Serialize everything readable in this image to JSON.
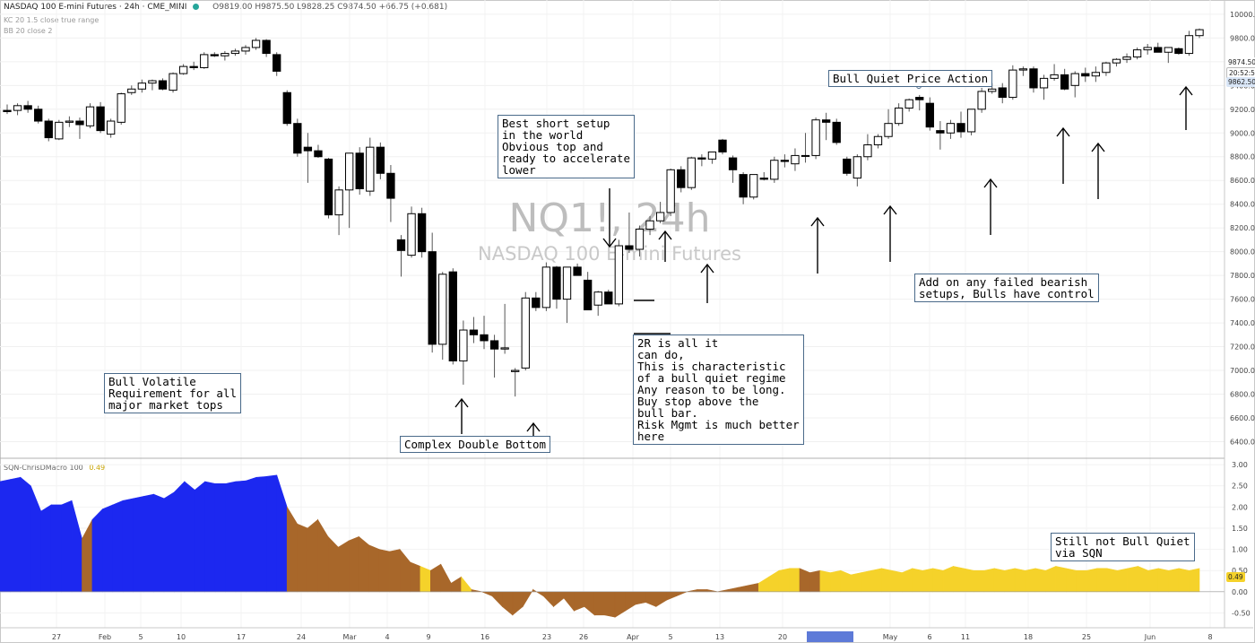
{
  "header": {
    "title": "NASDAQ 100 E-mini Futures",
    "interval": "24h",
    "exchange": "CME_MINI",
    "ohlc": "O9819.00  H9875.50  L9828.25  C9874.50  +66.75 (+0.681)",
    "indicator1": "KC 20 1.5 close true range",
    "indicator2": "BB 20 close 2"
  },
  "watermark": {
    "symbol": "NQ1!, 24h",
    "name": "NASDAQ 100 E-mini Futures"
  },
  "sqn": {
    "label": "SQN-ChrisDMacro 100",
    "value_label": "0.49",
    "badge": "0.49"
  },
  "price_badges": {
    "last": "9874.50",
    "countdown": "20:52:56",
    "other": "9862.50"
  },
  "date_badge": "",
  "annotations": [
    {
      "id": "best-short",
      "text": "Best short setup\nin the world\nObvious top and\nready to accelerate\nlower"
    },
    {
      "id": "bull-quiet",
      "text": "Bull Quiet Price Action"
    },
    {
      "id": "bull-volatile",
      "text": "Bull Volatile\nRequirement for all\nmajor market tops"
    },
    {
      "id": "double-bottom",
      "text": "Complex Double Bottom"
    },
    {
      "id": "two-r",
      "text": "2R is all it\ncan do,\nThis is characteristic\nof a bull quiet regime\nAny reason to be long.\nBuy stop above the\nbull bar.\nRisk Mgmt is much better\nhere"
    },
    {
      "id": "add-on",
      "text": "Add on any failed bearish\nsetups, Bulls have control"
    },
    {
      "id": "still-not",
      "text": "Still not Bull Quiet\nvia SQN"
    }
  ],
  "chart_data": [
    {
      "type": "candlestick",
      "title": "",
      "y_ticks": [
        6400,
        6600,
        6800,
        7000,
        7200,
        7400,
        7600,
        7800,
        8000,
        8200,
        8400,
        8600,
        8800,
        9000,
        9200,
        9400,
        9600,
        9800,
        10000
      ],
      "ylim": [
        6260,
        10120
      ],
      "x_ticks": [
        "27",
        "Feb",
        "5",
        "10",
        "17",
        "24",
        "Mar",
        "4",
        "9",
        "16",
        "23",
        "26",
        "Apr",
        "5",
        "13",
        "20",
        "May",
        "6",
        "11",
        "18",
        "25",
        "Jun",
        "8"
      ],
      "candles": [
        {
          "o": 9190,
          "h": 9240,
          "l": 9160,
          "c": 9180
        },
        {
          "o": 9190,
          "h": 9250,
          "l": 9150,
          "c": 9230
        },
        {
          "o": 9230,
          "h": 9270,
          "l": 9170,
          "c": 9200
        },
        {
          "o": 9200,
          "h": 9230,
          "l": 9080,
          "c": 9100
        },
        {
          "o": 9100,
          "h": 9120,
          "l": 8930,
          "c": 8960
        },
        {
          "o": 8950,
          "h": 9110,
          "l": 8940,
          "c": 9090
        },
        {
          "o": 9090,
          "h": 9140,
          "l": 9050,
          "c": 9100
        },
        {
          "o": 9100,
          "h": 9130,
          "l": 8950,
          "c": 9070
        },
        {
          "o": 9060,
          "h": 9250,
          "l": 9040,
          "c": 9220
        },
        {
          "o": 9220,
          "h": 9260,
          "l": 9000,
          "c": 9020
        },
        {
          "o": 8990,
          "h": 9120,
          "l": 8960,
          "c": 9100
        },
        {
          "o": 9090,
          "h": 9340,
          "l": 9070,
          "c": 9330
        },
        {
          "o": 9340,
          "h": 9400,
          "l": 9320,
          "c": 9370
        },
        {
          "o": 9370,
          "h": 9450,
          "l": 9340,
          "c": 9420
        },
        {
          "o": 9420,
          "h": 9450,
          "l": 9360,
          "c": 9440
        },
        {
          "o": 9440,
          "h": 9460,
          "l": 9360,
          "c": 9370
        },
        {
          "o": 9360,
          "h": 9510,
          "l": 9340,
          "c": 9500
        },
        {
          "o": 9500,
          "h": 9580,
          "l": 9490,
          "c": 9560
        },
        {
          "o": 9560,
          "h": 9600,
          "l": 9530,
          "c": 9550
        },
        {
          "o": 9550,
          "h": 9680,
          "l": 9540,
          "c": 9660
        },
        {
          "o": 9660,
          "h": 9680,
          "l": 9640,
          "c": 9650
        },
        {
          "o": 9650,
          "h": 9690,
          "l": 9610,
          "c": 9670
        },
        {
          "o": 9670,
          "h": 9710,
          "l": 9650,
          "c": 9690
        },
        {
          "o": 9690,
          "h": 9740,
          "l": 9660,
          "c": 9720
        },
        {
          "o": 9720,
          "h": 9800,
          "l": 9700,
          "c": 9780
        },
        {
          "o": 9780,
          "h": 9790,
          "l": 9640,
          "c": 9670
        },
        {
          "o": 9660,
          "h": 9680,
          "l": 9480,
          "c": 9520
        },
        {
          "o": 9340,
          "h": 9360,
          "l": 9060,
          "c": 9080
        },
        {
          "o": 9080,
          "h": 9120,
          "l": 8800,
          "c": 8830
        },
        {
          "o": 8880,
          "h": 9000,
          "l": 8580,
          "c": 8850
        },
        {
          "o": 8850,
          "h": 8900,
          "l": 8790,
          "c": 8800
        },
        {
          "o": 8780,
          "h": 8790,
          "l": 8280,
          "c": 8310
        },
        {
          "o": 8310,
          "h": 8550,
          "l": 8140,
          "c": 8520
        },
        {
          "o": 8520,
          "h": 8830,
          "l": 8200,
          "c": 8830
        },
        {
          "o": 8830,
          "h": 8880,
          "l": 8480,
          "c": 8530
        },
        {
          "o": 8510,
          "h": 8960,
          "l": 8470,
          "c": 8880
        },
        {
          "o": 8880,
          "h": 8920,
          "l": 8610,
          "c": 8660
        },
        {
          "o": 8660,
          "h": 8730,
          "l": 8250,
          "c": 8450
        },
        {
          "o": 8100,
          "h": 8140,
          "l": 7790,
          "c": 8010
        },
        {
          "o": 7970,
          "h": 8380,
          "l": 7950,
          "c": 8320
        },
        {
          "o": 8320,
          "h": 8370,
          "l": 7950,
          "c": 8000
        },
        {
          "o": 8000,
          "h": 8160,
          "l": 7150,
          "c": 7220
        },
        {
          "o": 7220,
          "h": 7830,
          "l": 7090,
          "c": 7810
        },
        {
          "o": 7830,
          "h": 7860,
          "l": 7050,
          "c": 7080
        },
        {
          "o": 7080,
          "h": 7420,
          "l": 6880,
          "c": 7340
        },
        {
          "o": 7340,
          "h": 7450,
          "l": 7230,
          "c": 7300
        },
        {
          "o": 7300,
          "h": 7460,
          "l": 7180,
          "c": 7250
        },
        {
          "o": 7250,
          "h": 7300,
          "l": 6940,
          "c": 7180
        },
        {
          "o": 7180,
          "h": 7560,
          "l": 7140,
          "c": 7190
        },
        {
          "o": 6990,
          "h": 7020,
          "l": 6780,
          "c": 7000
        },
        {
          "o": 7020,
          "h": 7660,
          "l": 7000,
          "c": 7610
        },
        {
          "o": 7610,
          "h": 7660,
          "l": 7500,
          "c": 7530
        },
        {
          "o": 7530,
          "h": 7910,
          "l": 7500,
          "c": 7870
        },
        {
          "o": 7870,
          "h": 7880,
          "l": 7520,
          "c": 7600
        },
        {
          "o": 7600,
          "h": 7870,
          "l": 7400,
          "c": 7870
        },
        {
          "o": 7870,
          "h": 7900,
          "l": 7800,
          "c": 7800
        },
        {
          "o": 7760,
          "h": 7830,
          "l": 7510,
          "c": 7510
        },
        {
          "o": 7550,
          "h": 7670,
          "l": 7460,
          "c": 7660
        },
        {
          "o": 7660,
          "h": 7680,
          "l": 7560,
          "c": 7560
        },
        {
          "o": 7560,
          "h": 8100,
          "l": 7540,
          "c": 8050
        },
        {
          "o": 8050,
          "h": 8330,
          "l": 7990,
          "c": 8020
        },
        {
          "o": 8020,
          "h": 8220,
          "l": 7960,
          "c": 8190
        },
        {
          "o": 8190,
          "h": 8300,
          "l": 8140,
          "c": 8260
        },
        {
          "o": 8260,
          "h": 8420,
          "l": 8240,
          "c": 8330
        },
        {
          "o": 8330,
          "h": 8700,
          "l": 8300,
          "c": 8690
        },
        {
          "o": 8690,
          "h": 8720,
          "l": 8500,
          "c": 8540
        },
        {
          "o": 8540,
          "h": 8800,
          "l": 8520,
          "c": 8790
        },
        {
          "o": 8790,
          "h": 8820,
          "l": 8720,
          "c": 8780
        },
        {
          "o": 8780,
          "h": 8840,
          "l": 8740,
          "c": 8840
        },
        {
          "o": 8940,
          "h": 8950,
          "l": 8820,
          "c": 8840
        },
        {
          "o": 8790,
          "h": 8810,
          "l": 8580,
          "c": 8690
        },
        {
          "o": 8650,
          "h": 8670,
          "l": 8400,
          "c": 8460
        },
        {
          "o": 8460,
          "h": 8650,
          "l": 8440,
          "c": 8650
        },
        {
          "o": 8620,
          "h": 8670,
          "l": 8600,
          "c": 8610
        },
        {
          "o": 8610,
          "h": 8800,
          "l": 8580,
          "c": 8770
        },
        {
          "o": 8770,
          "h": 8820,
          "l": 8710,
          "c": 8760
        },
        {
          "o": 8740,
          "h": 8870,
          "l": 8680,
          "c": 8810
        },
        {
          "o": 8810,
          "h": 9000,
          "l": 8750,
          "c": 8810
        },
        {
          "o": 8810,
          "h": 9130,
          "l": 8780,
          "c": 9110
        },
        {
          "o": 9110,
          "h": 9170,
          "l": 8940,
          "c": 9090
        },
        {
          "o": 9090,
          "h": 9120,
          "l": 8900,
          "c": 8920
        },
        {
          "o": 8780,
          "h": 8800,
          "l": 8640,
          "c": 8660
        },
        {
          "o": 8620,
          "h": 8820,
          "l": 8550,
          "c": 8800
        },
        {
          "o": 8800,
          "h": 8990,
          "l": 8770,
          "c": 8900
        },
        {
          "o": 8900,
          "h": 8990,
          "l": 8870,
          "c": 8970
        },
        {
          "o": 8970,
          "h": 9200,
          "l": 8950,
          "c": 9080
        },
        {
          "o": 9080,
          "h": 9250,
          "l": 9060,
          "c": 9210
        },
        {
          "o": 9210,
          "h": 9290,
          "l": 9180,
          "c": 9280
        },
        {
          "o": 9300,
          "h": 9320,
          "l": 9190,
          "c": 9280
        },
        {
          "o": 9250,
          "h": 9300,
          "l": 9020,
          "c": 9050
        },
        {
          "o": 9020,
          "h": 9100,
          "l": 8860,
          "c": 9000
        },
        {
          "o": 9000,
          "h": 9110,
          "l": 8950,
          "c": 9080
        },
        {
          "o": 9080,
          "h": 9180,
          "l": 8960,
          "c": 9010
        },
        {
          "o": 9010,
          "h": 9200,
          "l": 8980,
          "c": 9200
        },
        {
          "o": 9200,
          "h": 9380,
          "l": 9170,
          "c": 9350
        },
        {
          "o": 9350,
          "h": 9420,
          "l": 9330,
          "c": 9370
        },
        {
          "o": 9380,
          "h": 9420,
          "l": 9250,
          "c": 9300
        },
        {
          "o": 9300,
          "h": 9570,
          "l": 9280,
          "c": 9530
        },
        {
          "o": 9530,
          "h": 9560,
          "l": 9480,
          "c": 9540
        },
        {
          "o": 9540,
          "h": 9560,
          "l": 9340,
          "c": 9380
        },
        {
          "o": 9380,
          "h": 9490,
          "l": 9280,
          "c": 9460
        },
        {
          "o": 9460,
          "h": 9580,
          "l": 9440,
          "c": 9490
        },
        {
          "o": 9490,
          "h": 9540,
          "l": 9360,
          "c": 9370
        },
        {
          "o": 9400,
          "h": 9520,
          "l": 9300,
          "c": 9500
        },
        {
          "o": 9500,
          "h": 9550,
          "l": 9430,
          "c": 9480
        },
        {
          "o": 9480,
          "h": 9560,
          "l": 9430,
          "c": 9510
        },
        {
          "o": 9510,
          "h": 9600,
          "l": 9480,
          "c": 9590
        },
        {
          "o": 9590,
          "h": 9630,
          "l": 9560,
          "c": 9620
        },
        {
          "o": 9620,
          "h": 9670,
          "l": 9590,
          "c": 9640
        },
        {
          "o": 9640,
          "h": 9720,
          "l": 9620,
          "c": 9700
        },
        {
          "o": 9700,
          "h": 9750,
          "l": 9660,
          "c": 9720
        },
        {
          "o": 9720,
          "h": 9760,
          "l": 9680,
          "c": 9680
        },
        {
          "o": 9680,
          "h": 9720,
          "l": 9590,
          "c": 9720
        },
        {
          "o": 9710,
          "h": 9720,
          "l": 9660,
          "c": 9670
        },
        {
          "o": 9670,
          "h": 9860,
          "l": 9650,
          "c": 9820
        },
        {
          "o": 9820,
          "h": 9880,
          "l": 9800,
          "c": 9870
        }
      ]
    },
    {
      "type": "area",
      "title": "",
      "y_ticks": [
        -0.5,
        0.0,
        0.5,
        1.0,
        1.5,
        2.0,
        2.5,
        3.0
      ],
      "ylim": [
        -0.85,
        3.15
      ],
      "values": [
        2.6,
        2.65,
        2.7,
        2.5,
        1.9,
        2.05,
        2.05,
        2.15,
        1.25,
        1.7,
        1.95,
        2.05,
        2.15,
        2.2,
        2.25,
        2.3,
        2.2,
        2.35,
        2.6,
        2.4,
        2.6,
        2.55,
        2.55,
        2.6,
        2.62,
        2.7,
        2.72,
        2.75,
        2.0,
        1.6,
        1.5,
        1.7,
        1.3,
        1.05,
        1.2,
        1.3,
        1.1,
        1.0,
        0.95,
        1.0,
        0.7,
        0.6,
        0.5,
        0.65,
        0.2,
        0.35,
        0.05,
        0.0,
        -0.1,
        -0.35,
        -0.55,
        -0.35,
        0.05,
        -0.1,
        -0.35,
        -0.15,
        -0.45,
        -0.35,
        -0.55,
        -0.55,
        -0.6,
        -0.45,
        -0.3,
        -0.25,
        -0.35,
        -0.2,
        -0.1,
        0.0,
        0.05,
        0.05,
        0.0,
        0.05,
        0.1,
        0.15,
        0.2,
        0.35,
        0.5,
        0.55,
        0.55,
        0.45,
        0.5,
        0.45,
        0.5,
        0.4,
        0.45,
        0.5,
        0.55,
        0.5,
        0.45,
        0.55,
        0.5,
        0.55,
        0.5,
        0.6,
        0.55,
        0.5,
        0.5,
        0.55,
        0.5,
        0.55,
        0.5,
        0.55,
        0.5,
        0.6,
        0.55,
        0.5,
        0.5,
        0.55,
        0.55,
        0.5,
        0.55,
        0.6,
        0.5,
        0.55,
        0.5,
        0.55,
        0.5,
        0.55
      ],
      "colors": {
        "blue": "#1c28f0",
        "brown": "#a8672a",
        "yellow": "#f5d22a"
      },
      "regimes": "blue for the volatile bull run until late Feb, brown for the decline and recovery, yellow from mid-April with brown gaps"
    }
  ]
}
